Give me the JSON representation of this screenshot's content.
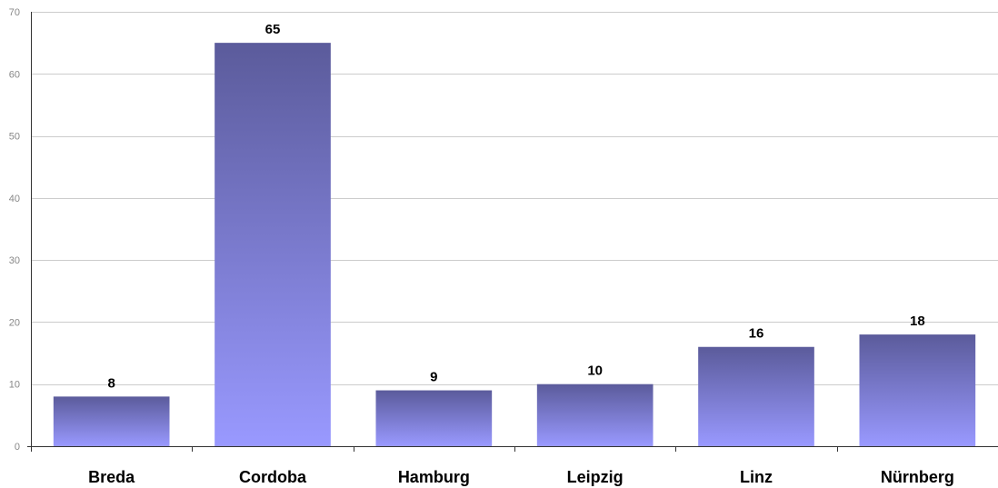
{
  "chart_data": {
    "type": "bar",
    "title": "",
    "xlabel": "",
    "ylabel": "",
    "categories": [
      "Breda",
      "Cordoba",
      "Hamburg",
      "Leipzig",
      "Linz",
      "Nürnberg"
    ],
    "values": [
      8,
      65,
      9,
      10,
      16,
      18
    ],
    "ylim": [
      0,
      70
    ],
    "yticks": [
      0,
      10,
      20,
      30,
      40,
      50,
      60,
      70
    ],
    "grid": true,
    "legend": "none",
    "data_labels": true,
    "colors": {
      "bar_top": "#5b5b9b",
      "bar_bottom": "#9999ff",
      "grid": "#cccccc",
      "axis": "#333333",
      "tick_text": "#888888"
    }
  }
}
